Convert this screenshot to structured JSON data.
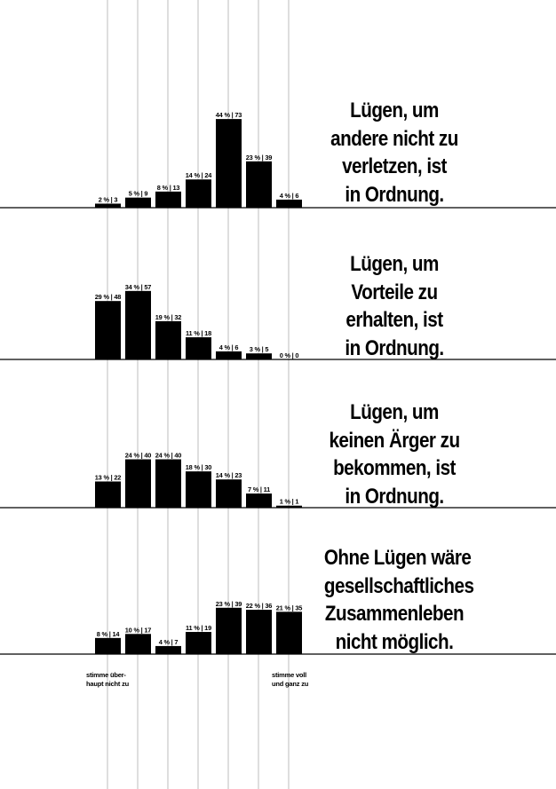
{
  "chart_data": [
    {
      "type": "bar",
      "title_lines": [
        "Lügen, um",
        "andere nicht zu",
        "verletzen, ist",
        "in Ordnung."
      ],
      "labels": [
        "2 % | 3",
        "5 % | 9",
        "8 % | 13",
        "14 % | 24",
        "44 % | 73",
        "23 % | 39",
        "4 % | 6"
      ],
      "percent": [
        2,
        5,
        8,
        14,
        44,
        23,
        4
      ],
      "count": [
        3,
        9,
        13,
        24,
        73,
        39,
        6
      ]
    },
    {
      "type": "bar",
      "title_lines": [
        "Lügen, um",
        "Vorteile zu",
        "erhalten, ist",
        "in Ordnung."
      ],
      "labels": [
        "29 % | 48",
        "34 % | 57",
        "19 % | 32",
        "11 % | 18",
        "4 % | 6",
        "3 % | 5",
        "0 % | 0"
      ],
      "percent": [
        29,
        34,
        19,
        11,
        4,
        3,
        0
      ],
      "count": [
        48,
        57,
        32,
        18,
        6,
        5,
        0
      ]
    },
    {
      "type": "bar",
      "title_lines": [
        "Lügen, um",
        "keinen Ärger zu",
        "bekommen, ist",
        "in Ordnung."
      ],
      "labels": [
        "13 % | 22",
        "24 % | 40",
        "24 % | 40",
        "18 % | 30",
        "14 % | 23",
        "7 % | 11",
        "1 % | 1"
      ],
      "percent": [
        13,
        24,
        24,
        18,
        14,
        7,
        1
      ],
      "count": [
        22,
        40,
        40,
        30,
        23,
        11,
        1
      ]
    },
    {
      "type": "bar",
      "title_lines": [
        "Ohne Lügen wäre",
        "gesellschaftliches",
        "Zusammenleben",
        "nicht möglich."
      ],
      "labels": [
        "8 % | 14",
        "10 % | 17",
        "4 % | 7",
        "11 % | 19",
        "23 % | 39",
        "22 % | 36",
        "21 % | 35"
      ],
      "percent": [
        8,
        10,
        4,
        11,
        23,
        22,
        21
      ],
      "count": [
        14,
        17,
        7,
        19,
        39,
        36,
        35
      ]
    }
  ],
  "scale": {
    "left_label": [
      "stimme über-",
      "haupt nicht zu"
    ],
    "right_label": [
      "stimme voll",
      "und ganz zu"
    ]
  },
  "colors": {
    "bar": "#000000",
    "gridline": "#bdbdbd",
    "baseline": "#000000"
  }
}
